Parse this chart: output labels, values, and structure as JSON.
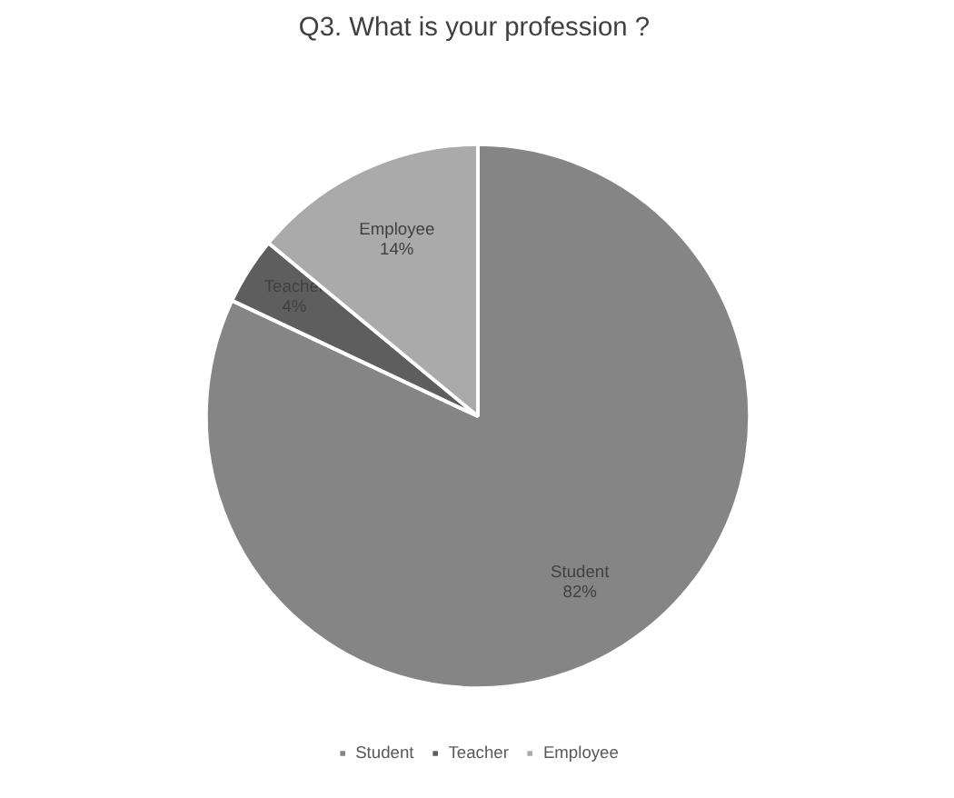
{
  "chart_data": {
    "type": "pie",
    "title": "Q3.  What is your profession ?",
    "categories": [
      "Student",
      "Teacher",
      "Employee"
    ],
    "values": [
      82,
      4,
      14
    ],
    "colors": [
      "#858585",
      "#5e5e5e",
      "#aaaaaa"
    ],
    "value_labels": [
      "82%",
      "4%",
      "14%"
    ],
    "legend": "bottom"
  }
}
